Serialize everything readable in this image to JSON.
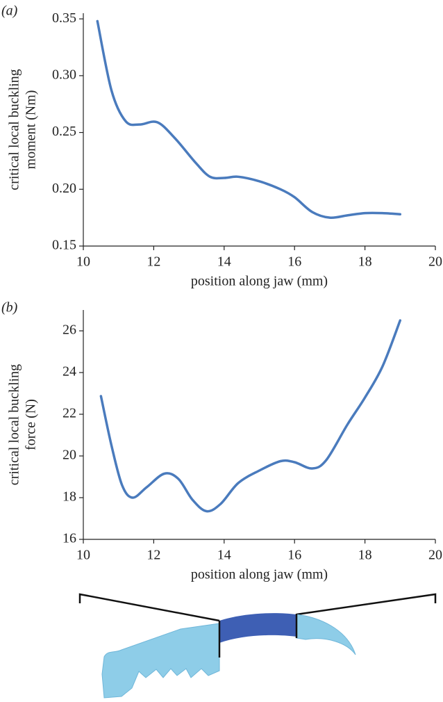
{
  "chart_data": [
    {
      "type": "line",
      "panel": "(a)",
      "ylabel": [
        "critical local buckling",
        "moment (Nm)"
      ],
      "xlabel": "position along jaw (mm)",
      "xlim": [
        10,
        20
      ],
      "xticks": [
        10,
        12,
        14,
        16,
        18,
        20
      ],
      "ylim": [
        0.15,
        0.355
      ],
      "yticks": [
        0.15,
        {
          "value": 0.2,
          "label": "0.20"
        },
        0.25,
        {
          "value": 0.3,
          "label": "0.30"
        },
        0.35
      ],
      "x": [
        10.4,
        10.8,
        11.2,
        11.6,
        12.1,
        12.6,
        13.2,
        13.6,
        14.0,
        14.4,
        15.0,
        15.6,
        16.0,
        16.5,
        17.0,
        17.5,
        18.0,
        18.5,
        19.0
      ],
      "series": [
        {
          "color": "#4a7bbd",
          "values": [
            0.348,
            0.287,
            0.26,
            0.257,
            0.259,
            0.245,
            0.223,
            0.211,
            0.21,
            0.211,
            0.207,
            0.2,
            0.193,
            0.18,
            0.175,
            0.177,
            0.179,
            0.179,
            0.178
          ]
        }
      ]
    },
    {
      "type": "line",
      "panel": "(b)",
      "ylabel": [
        "critical local buckling",
        "force (N)"
      ],
      "xlabel": "position along jaw (mm)",
      "xlim": [
        10,
        20
      ],
      "xticks": [
        10,
        12,
        14,
        16,
        18,
        20
      ],
      "ylim": [
        16,
        27
      ],
      "yticks": [
        16,
        18,
        20,
        22,
        24,
        26
      ],
      "x": [
        10.5,
        10.8,
        11.1,
        11.4,
        11.8,
        12.3,
        12.7,
        13.1,
        13.5,
        13.9,
        14.4,
        15.0,
        15.6,
        16.0,
        16.5,
        16.9,
        17.5,
        18.0,
        18.5,
        19.0
      ],
      "series": [
        {
          "color": "#4a7bbd",
          "values": [
            22.87,
            20.5,
            18.6,
            18.0,
            18.5,
            19.15,
            18.9,
            17.9,
            17.35,
            17.7,
            18.7,
            19.3,
            19.75,
            19.7,
            19.4,
            19.8,
            21.5,
            22.8,
            24.3,
            26.5
          ]
        }
      ]
    }
  ]
}
